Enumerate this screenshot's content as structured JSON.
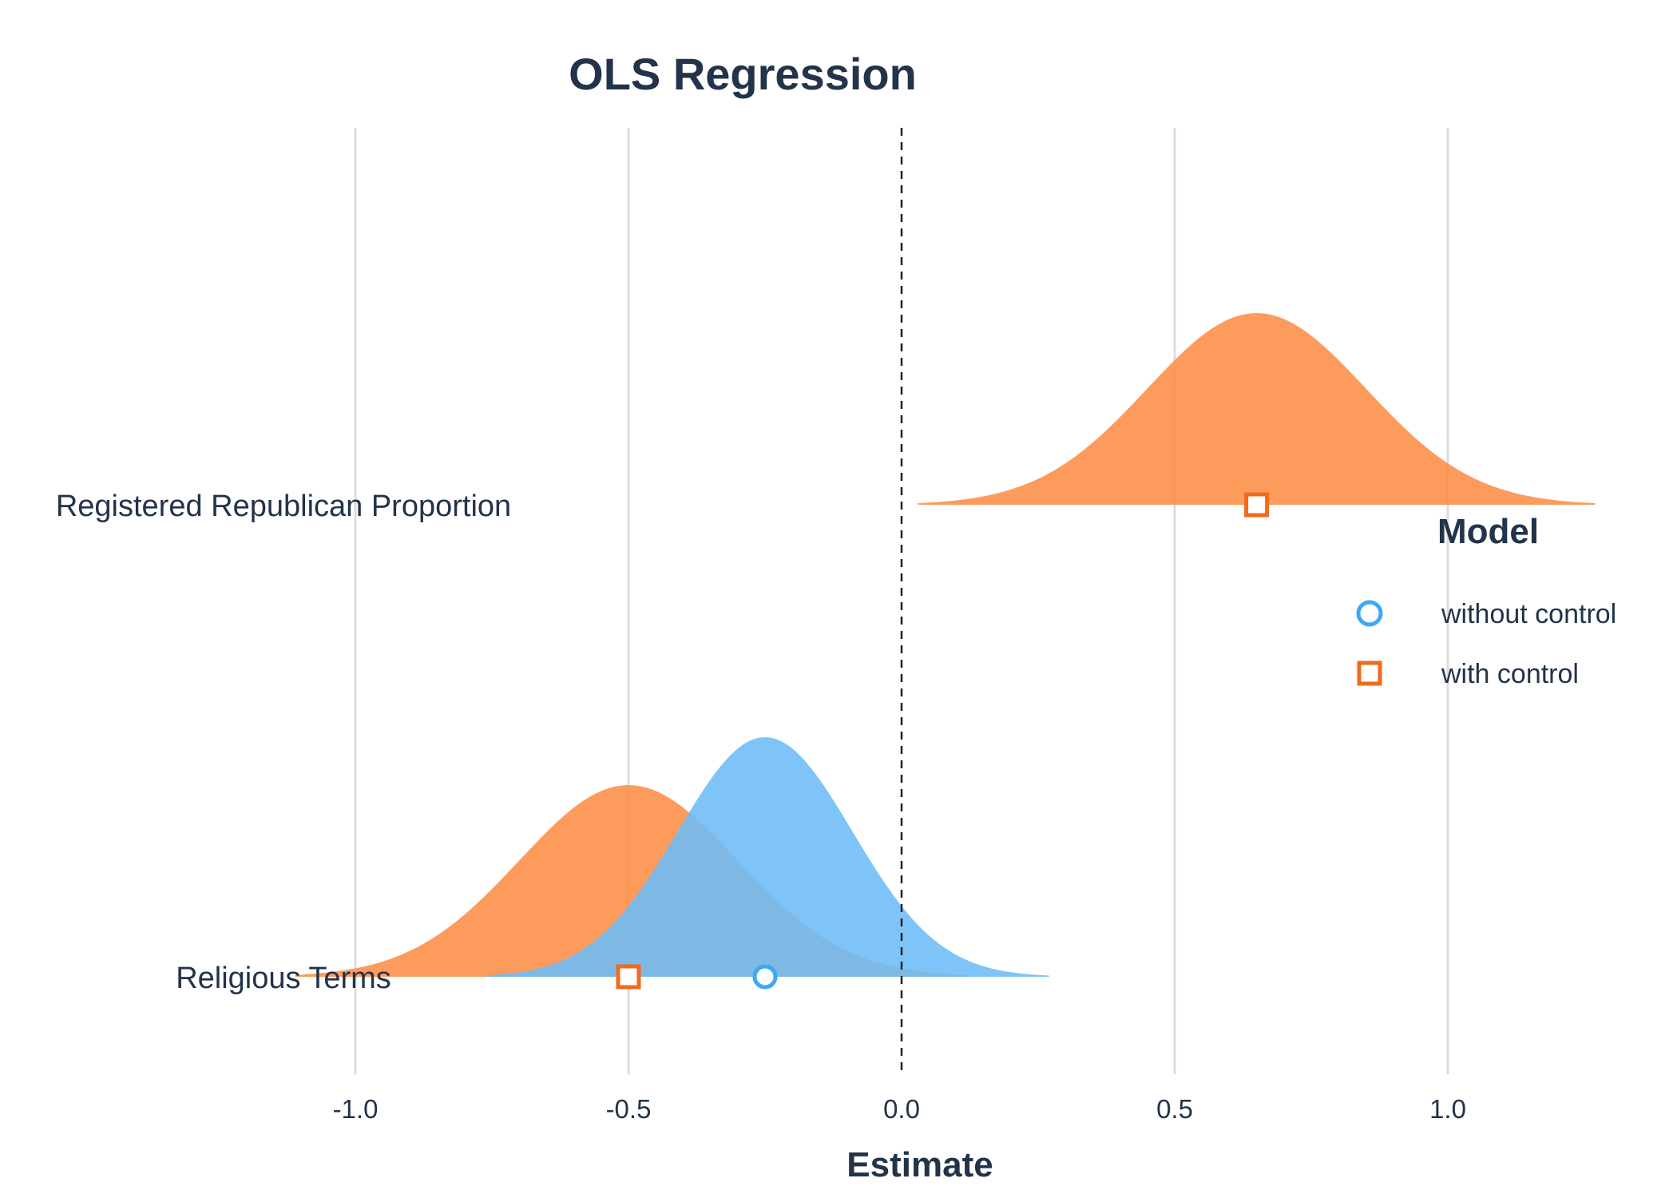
{
  "chart_data": {
    "type": "coefficient-density",
    "title": "OLS Regression",
    "xlabel": "Estimate",
    "xlim": [
      -1.25,
      1.3
    ],
    "xticks": [
      -1.0,
      -0.5,
      0.0,
      0.5,
      1.0
    ],
    "xtick_labels": [
      "-1.0",
      "-0.5",
      "0.0",
      "0.5",
      "1.0"
    ],
    "reference_line": 0.0,
    "grid": "vertical",
    "legend": {
      "title": "Model",
      "placement": "right"
    },
    "categories": [
      "Registered Republican Proportion",
      "Religious Terms"
    ],
    "series": [
      {
        "name": "without control",
        "marker": "circle",
        "color": "#3fa7f5",
        "fill": "#6cbcf7",
        "estimates": [
          {
            "category": "Religious Terms",
            "estimate": -0.25,
            "ci_low": -0.76,
            "ci_high": 0.27,
            "sd": 0.16
          }
        ]
      },
      {
        "name": "with control",
        "marker": "square",
        "color": "#f26a1b",
        "fill": "#fd8d47",
        "estimates": [
          {
            "category": "Registered Republican Proportion",
            "estimate": 0.65,
            "ci_low": 0.03,
            "ci_high": 1.27,
            "sd": 0.2
          },
          {
            "category": "Religious Terms",
            "estimate": -0.5,
            "ci_low": -1.11,
            "ci_high": 0.12,
            "sd": 0.2
          }
        ]
      }
    ]
  }
}
